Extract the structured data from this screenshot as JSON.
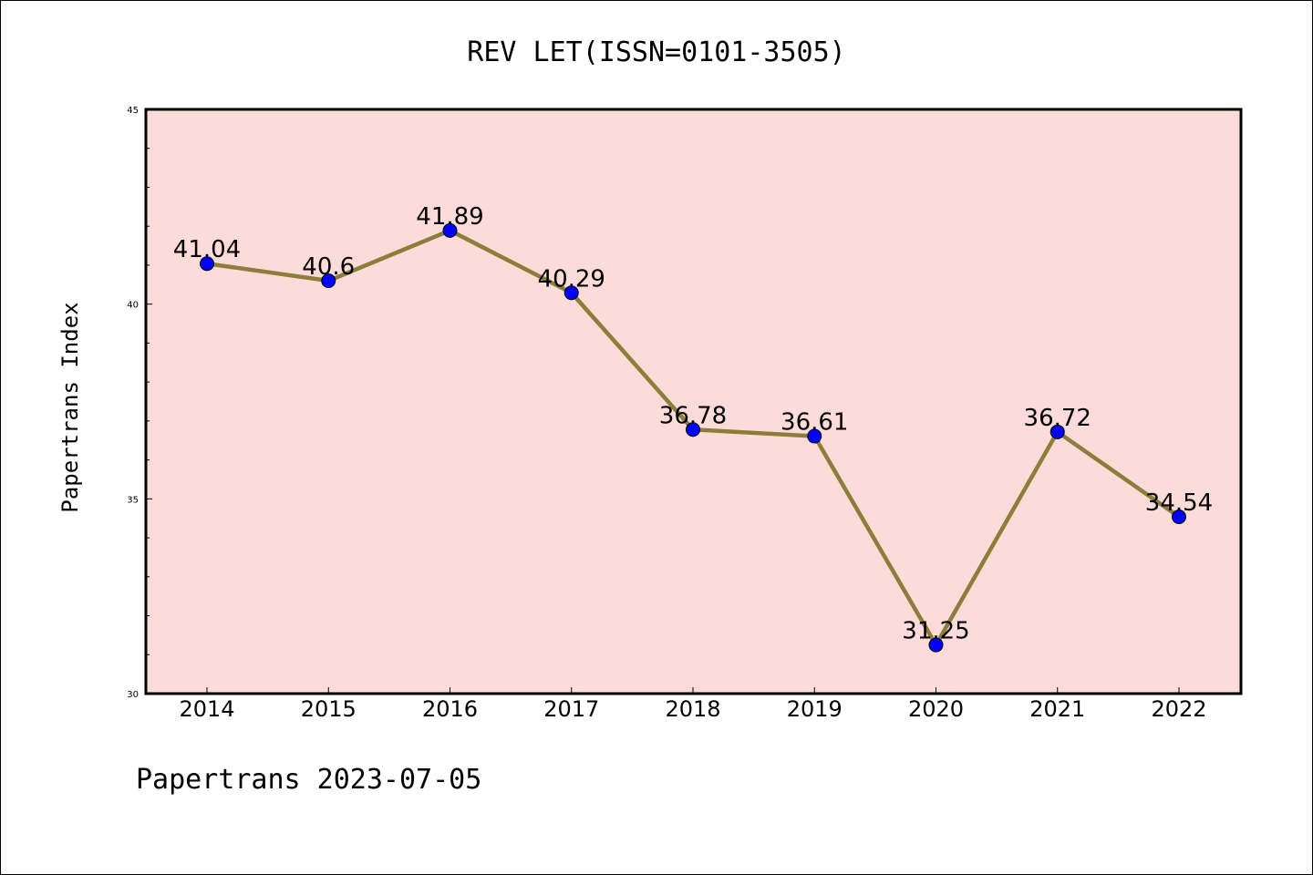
{
  "chart_data": {
    "type": "line",
    "title": "REV LET(ISSN=0101-3505)",
    "xlabel": "",
    "ylabel": "Papertrans Index",
    "footer": "Papertrans 2023-07-05",
    "categories": [
      "2014",
      "2015",
      "2016",
      "2017",
      "2018",
      "2019",
      "2020",
      "2021",
      "2022"
    ],
    "values": [
      41.04,
      40.6,
      41.89,
      40.29,
      36.78,
      36.61,
      31.25,
      36.72,
      34.54
    ],
    "value_labels": [
      "41.04",
      "40.6",
      "41.89",
      "40.29",
      "36.78",
      "36.61",
      "31.25",
      "36.72",
      "34.54"
    ],
    "ylim": [
      30,
      45
    ],
    "yticks": [
      "30",
      "35",
      "40",
      "45"
    ],
    "grid": false,
    "colors": {
      "plot_background": "#fddbd9",
      "line": "#8b7d3a",
      "marker": "#0000ff"
    }
  }
}
